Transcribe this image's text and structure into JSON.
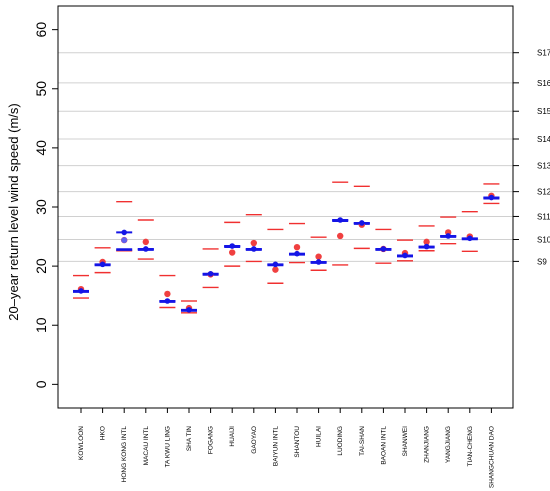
{
  "chart_data": {
    "type": "scatter",
    "ylabel": "20–year return level wind speed (m/s)",
    "ylim": [
      -4,
      64
    ],
    "yticks": [
      0,
      10,
      20,
      30,
      40,
      50,
      60
    ],
    "grid": "horizontal lines at Saffir-Simpson scale levels",
    "right_axis": {
      "labels": [
        "S9",
        "S10",
        "S11",
        "S12",
        "S13",
        "S14",
        "S15",
        "S16",
        "S17"
      ],
      "values": [
        20.8,
        24.5,
        28.4,
        32.6,
        37.0,
        41.5,
        46.2,
        51.0,
        56.1
      ]
    },
    "categories": [
      "KOWLOON",
      "HKO",
      "HONG KONG INTL",
      "MACAU INTL",
      "TA KWU LING",
      "SHA TIN",
      "FOGANG",
      "HUAIJI",
      "GAOYAO",
      "BAIYUN INTL",
      "SHANTOU",
      "HUILAI",
      "LUODING",
      "TAI-SHAN",
      "BAOAN INTL",
      "SHANWEI",
      "ZHANJIANG",
      "YANGJIANG",
      "TIAN-CHENG",
      "SHANGCHUAN DAO"
    ],
    "series": [
      {
        "values": [
          15.8,
          20.3,
          25.7,
          22.9,
          14.1,
          12.6,
          18.7,
          23.4,
          22.9,
          20.3,
          22.1,
          20.7,
          27.8,
          27.3,
          22.9,
          21.8,
          23.3,
          25.1,
          24.7,
          31.6
        ]
      },
      {
        "values": [
          15.8,
          20.3,
          22.9,
          22.9,
          14.1,
          12.6,
          18.7,
          23.4,
          22.9,
          20.3,
          22.1,
          20.7,
          27.8,
          27.3,
          22.9,
          21.8,
          23.3,
          25.1,
          24.7,
          31.6
        ]
      },
      {
        "values": [
          15.6,
          20.1,
          22.7,
          22.7,
          13.9,
          12.4,
          18.5,
          23.2,
          22.7,
          20.1,
          21.9,
          20.5,
          27.6,
          27.1,
          22.7,
          21.6,
          23.1,
          24.9,
          24.5,
          31.4
        ]
      },
      {
        "values": [
          16.1,
          20.7,
          24.4,
          24.1,
          15.3,
          12.9,
          18.6,
          22.3,
          23.9,
          19.4,
          23.2,
          21.6,
          25.1,
          27.0,
          22.9,
          22.2,
          24.1,
          25.7,
          25.0,
          31.9
        ]
      },
      {
        "values": [
          18.4,
          23.1,
          30.9,
          27.8,
          18.4,
          14.1,
          22.9,
          27.4,
          28.7,
          26.2,
          27.2,
          24.9,
          34.2,
          33.5,
          26.2,
          24.4,
          26.8,
          28.3,
          29.2,
          33.9
        ]
      },
      {
        "values": [
          14.6,
          18.9,
          22.6,
          21.2,
          13.0,
          12.1,
          16.4,
          20.0,
          20.8,
          17.1,
          20.6,
          19.3,
          20.2,
          23.0,
          20.5,
          20.9,
          22.6,
          23.8,
          22.5,
          30.6
        ]
      },
      {
        "values": [
          null,
          null,
          24.4,
          null,
          null,
          null,
          null,
          null,
          null,
          null,
          null,
          null,
          null,
          null,
          null,
          null,
          null,
          null,
          null,
          null
        ]
      }
    ]
  },
  "colors": {
    "estimate": "#1515e6",
    "interval": "#f03030",
    "observed": "#f04040",
    "alt_estimate": "#6060f0",
    "grid": "#d0d0d0"
  }
}
